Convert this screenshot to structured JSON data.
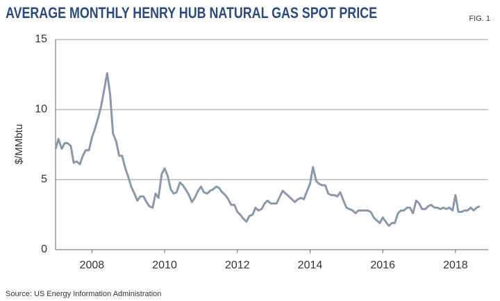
{
  "chart_data": {
    "type": "line",
    "title": "AVERAGE MONTHLY HENRY HUB NATURAL GAS SPOT PRICE",
    "figure_label": "FIG. 1",
    "y_label": "$/MMbtu",
    "source": "Source: US Energy Information Administration",
    "x": [
      2007.0,
      2007.08,
      2007.17,
      2007.25,
      2007.33,
      2007.42,
      2007.5,
      2007.58,
      2007.67,
      2007.75,
      2007.83,
      2007.92,
      2008.0,
      2008.08,
      2008.17,
      2008.25,
      2008.33,
      2008.42,
      2008.5,
      2008.58,
      2008.67,
      2008.75,
      2008.83,
      2008.92,
      2009.0,
      2009.08,
      2009.17,
      2009.25,
      2009.33,
      2009.42,
      2009.5,
      2009.58,
      2009.67,
      2009.75,
      2009.83,
      2009.92,
      2010.0,
      2010.08,
      2010.17,
      2010.25,
      2010.33,
      2010.42,
      2010.5,
      2010.58,
      2010.67,
      2010.75,
      2010.83,
      2010.92,
      2011.0,
      2011.08,
      2011.17,
      2011.25,
      2011.33,
      2011.42,
      2011.5,
      2011.58,
      2011.67,
      2011.75,
      2011.83,
      2011.92,
      2012.0,
      2012.08,
      2012.17,
      2012.25,
      2012.33,
      2012.42,
      2012.5,
      2012.58,
      2012.67,
      2012.75,
      2012.83,
      2012.92,
      2013.0,
      2013.08,
      2013.17,
      2013.25,
      2013.33,
      2013.42,
      2013.5,
      2013.58,
      2013.67,
      2013.75,
      2013.83,
      2013.92,
      2014.0,
      2014.08,
      2014.17,
      2014.25,
      2014.33,
      2014.42,
      2014.5,
      2014.58,
      2014.67,
      2014.75,
      2014.83,
      2014.92,
      2015.0,
      2015.08,
      2015.17,
      2015.25,
      2015.33,
      2015.42,
      2015.5,
      2015.58,
      2015.67,
      2015.75,
      2015.83,
      2015.92,
      2016.0,
      2016.08,
      2016.17,
      2016.25,
      2016.33,
      2016.42,
      2016.5,
      2016.58,
      2016.67,
      2016.75,
      2016.83,
      2016.92,
      2017.0,
      2017.08,
      2017.17,
      2017.25,
      2017.33,
      2017.42,
      2017.5,
      2017.58,
      2017.67,
      2017.75,
      2017.83,
      2017.92,
      2018.0,
      2018.08,
      2018.17,
      2018.25,
      2018.33,
      2018.42,
      2018.5,
      2018.58,
      2018.67
    ],
    "series": [
      {
        "color": "#8b97ab",
        "values": [
          7.2,
          7.9,
          7.2,
          7.6,
          7.6,
          7.4,
          6.2,
          6.3,
          6.1,
          6.7,
          7.1,
          7.1,
          8.0,
          8.6,
          9.4,
          10.2,
          11.3,
          12.6,
          11.1,
          8.3,
          7.7,
          6.7,
          6.7,
          5.8,
          5.2,
          4.5,
          4.0,
          3.5,
          3.8,
          3.8,
          3.4,
          3.1,
          3.0,
          4.0,
          3.7,
          5.4,
          5.8,
          5.3,
          4.3,
          4.0,
          4.1,
          4.8,
          4.6,
          4.3,
          3.9,
          3.4,
          3.7,
          4.2,
          4.5,
          4.1,
          4.0,
          4.2,
          4.3,
          4.5,
          4.4,
          4.1,
          3.9,
          3.6,
          3.2,
          3.2,
          2.7,
          2.5,
          2.2,
          2.0,
          2.4,
          2.5,
          3.0,
          2.8,
          2.9,
          3.3,
          3.5,
          3.3,
          3.3,
          3.3,
          3.8,
          4.2,
          4.0,
          3.8,
          3.6,
          3.4,
          3.6,
          3.7,
          3.6,
          4.2,
          4.7,
          5.9,
          4.9,
          4.7,
          4.6,
          4.6,
          4.0,
          3.9,
          3.9,
          3.8,
          4.1,
          3.5,
          3.0,
          2.9,
          2.8,
          2.6,
          2.8,
          2.8,
          2.8,
          2.8,
          2.7,
          2.3,
          2.1,
          1.9,
          2.3,
          2.0,
          1.7,
          1.9,
          1.9,
          2.6,
          2.8,
          2.8,
          3.0,
          3.0,
          2.6,
          3.5,
          3.3,
          2.9,
          2.9,
          3.1,
          3.2,
          3.0,
          3.0,
          2.9,
          3.0,
          2.9,
          3.0,
          2.8,
          3.9,
          2.7,
          2.7,
          2.8,
          2.8,
          3.0,
          2.8,
          3.0,
          3.1
        ]
      }
    ],
    "xlim": [
      2007.0,
      2018.9
    ],
    "xticks": [
      2008,
      2010,
      2012,
      2014,
      2016,
      2018
    ],
    "ylim": [
      0,
      15
    ],
    "yticks": [
      0,
      5,
      10,
      15
    ],
    "grid": true
  }
}
